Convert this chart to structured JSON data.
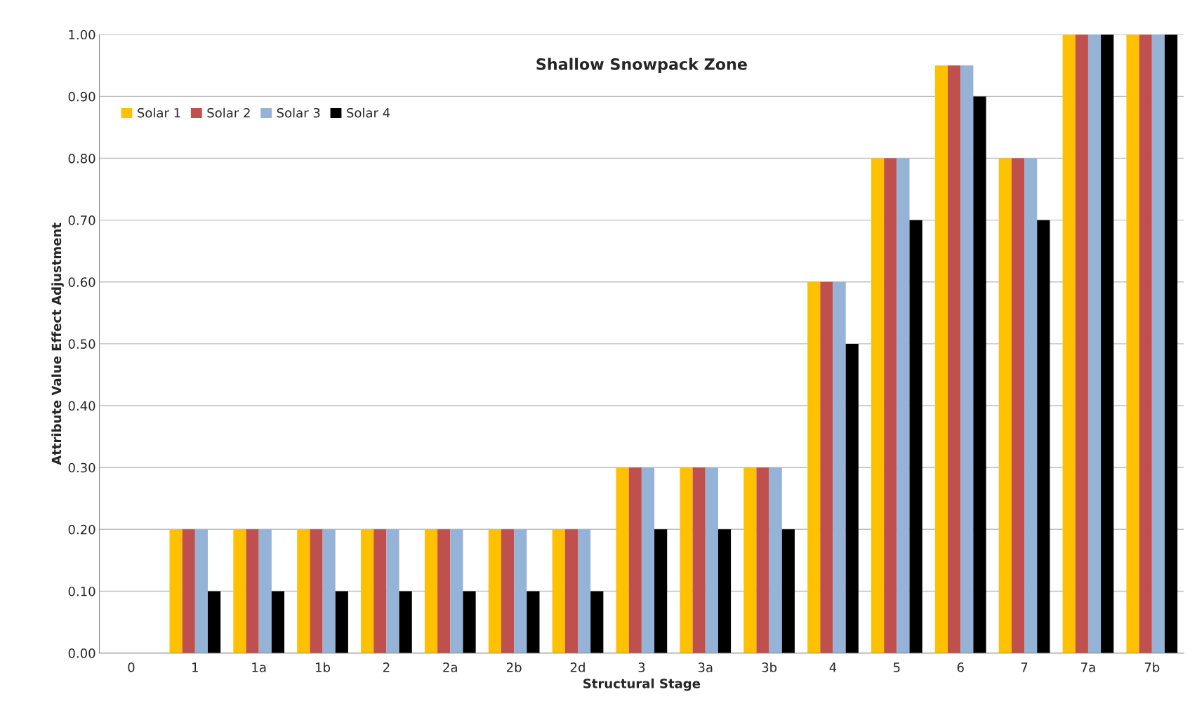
{
  "chart_data": {
    "type": "bar",
    "title": "Shallow Snowpack Zone",
    "xlabel": "Structural Stage",
    "ylabel": "Attribute Value Effect Adjustment",
    "categories": [
      "0",
      "1",
      "1a",
      "1b",
      "2",
      "2a",
      "2b",
      "2d",
      "3",
      "3a",
      "3b",
      "4",
      "5",
      "6",
      "7",
      "7a",
      "7b"
    ],
    "series": [
      {
        "name": "Solar 1",
        "color": "#ffc000",
        "values": [
          0,
          0.2,
          0.2,
          0.2,
          0.2,
          0.2,
          0.2,
          0.2,
          0.3,
          0.3,
          0.3,
          0.6,
          0.8,
          0.95,
          0.8,
          1.0,
          1.0
        ]
      },
      {
        "name": "Solar 2",
        "color": "#c0504d",
        "values": [
          0,
          0.2,
          0.2,
          0.2,
          0.2,
          0.2,
          0.2,
          0.2,
          0.3,
          0.3,
          0.3,
          0.6,
          0.8,
          0.95,
          0.8,
          1.0,
          1.0
        ]
      },
      {
        "name": "Solar 3",
        "color": "#95b3d7",
        "values": [
          0,
          0.2,
          0.2,
          0.2,
          0.2,
          0.2,
          0.2,
          0.2,
          0.3,
          0.3,
          0.3,
          0.6,
          0.8,
          0.95,
          0.8,
          1.0,
          1.0
        ]
      },
      {
        "name": "Solar 4",
        "color": "#000000",
        "values": [
          0,
          0.1,
          0.1,
          0.1,
          0.1,
          0.1,
          0.1,
          0.1,
          0.2,
          0.2,
          0.2,
          0.5,
          0.7,
          0.9,
          0.7,
          1.0,
          1.0
        ]
      }
    ],
    "ylim": [
      0,
      1.0
    ],
    "yticks": [
      {
        "value": 0,
        "label": "0.00"
      },
      {
        "value": 0.1,
        "label": "0.10"
      },
      {
        "value": 0.2,
        "label": "0.20"
      },
      {
        "value": 0.3,
        "label": "0.30"
      },
      {
        "value": 0.4,
        "label": "0.40"
      },
      {
        "value": 0.5,
        "label": "0.50"
      },
      {
        "value": 0.6,
        "label": "0.60"
      },
      {
        "value": 0.7,
        "label": "0.70"
      },
      {
        "value": 0.8,
        "label": "0.80"
      },
      {
        "value": 0.9,
        "label": "0.90"
      },
      {
        "value": 1.0,
        "label": "1.00"
      }
    ],
    "grid": "y",
    "legend": "top left"
  }
}
